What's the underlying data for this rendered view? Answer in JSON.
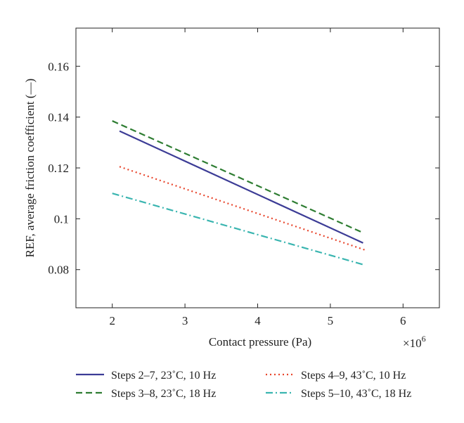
{
  "chart_data": {
    "type": "line",
    "xlabel": "Contact pressure (Pa)",
    "ylabel": "REF, average friction coefficient (—)",
    "x_multiplier": "×10",
    "x_multiplier_exp": "6",
    "xlim": [
      1.5,
      6.5
    ],
    "ylim": [
      0.065,
      0.175
    ],
    "xticks": [
      2,
      3,
      4,
      5,
      6
    ],
    "yticks": [
      0.08,
      0.1,
      0.12,
      0.14,
      0.16
    ],
    "xtick_labels": [
      "2",
      "3",
      "4",
      "5",
      "6"
    ],
    "ytick_labels": [
      "0.08",
      "0.1",
      "0.12",
      "0.14",
      "0.16"
    ],
    "grid": false,
    "legend_position": "bottom",
    "series": [
      {
        "name": "Steps 2–7, 23˚C, 10 Hz",
        "color": "#3c3c96",
        "dash": "solid",
        "x": [
          2.1,
          5.45
        ],
        "y": [
          0.1345,
          0.0905
        ]
      },
      {
        "name": "Steps 3–8, 23˚C, 18 Hz",
        "color": "#2e7d32",
        "dash": "dashed",
        "x": [
          2.0,
          5.45
        ],
        "y": [
          0.1385,
          0.0945
        ]
      },
      {
        "name": "Steps 4–9, 43˚C, 10 Hz",
        "color": "#e8452c",
        "dash": "dotted",
        "x": [
          2.1,
          5.5
        ],
        "y": [
          0.1205,
          0.0875
        ]
      },
      {
        "name": "Steps 5–10, 43˚C, 18 Hz",
        "color": "#3ab5b0",
        "dash": "dashdot",
        "x": [
          2.0,
          5.45
        ],
        "y": [
          0.11,
          0.082
        ]
      }
    ]
  }
}
